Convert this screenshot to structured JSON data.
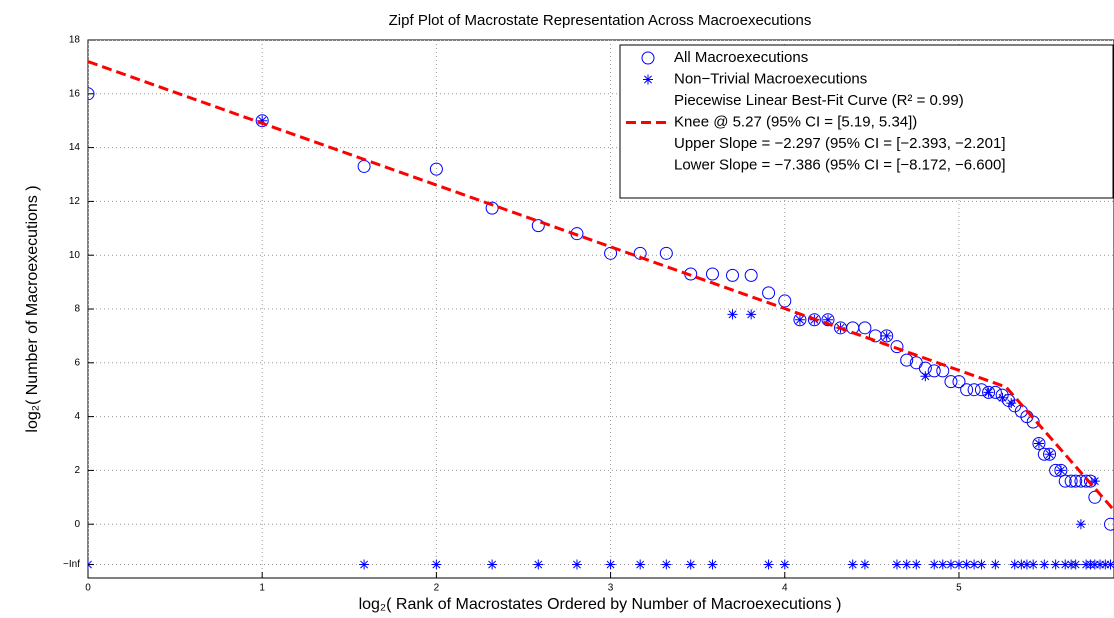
{
  "chart_data": {
    "type": "scatter",
    "title": "Zipf Plot of Macrostate Representation Across Macroexecutions",
    "xlabel": "log₂( Rank of Macrostates Ordered by Number of Macroexecutions )",
    "ylabel": "log₂( Number of Macroexecutions )",
    "xlim": [
      0,
      5.89
    ],
    "ylim": [
      -2,
      18
    ],
    "xticks": [
      0,
      1,
      2,
      3,
      4,
      5
    ],
    "yticks": [
      {
        "value": -1.5,
        "label": "−Inf"
      },
      0,
      2,
      4,
      6,
      8,
      10,
      12,
      14,
      16,
      18
    ],
    "grid": true,
    "legend": "upper right",
    "series": [
      {
        "name": "All Macroexecutions",
        "marker": "circle",
        "color": "#0000ff",
        "x": [
          0,
          1,
          1.585,
          2,
          2.32,
          2.585,
          2.807,
          3,
          3.17,
          3.32,
          3.46,
          3.585,
          3.7,
          3.807,
          3.907,
          4,
          4.087,
          4.17,
          4.248,
          4.32,
          4.39,
          4.46,
          4.52,
          4.585,
          4.644,
          4.7,
          4.755,
          4.807,
          4.858,
          4.907,
          4.954,
          5,
          5.044,
          5.087,
          5.129,
          5.17,
          5.209,
          5.248,
          5.285,
          5.32,
          5.358,
          5.39,
          5.426,
          5.459,
          5.49,
          5.52,
          5.555,
          5.585,
          5.61,
          5.644,
          5.67,
          5.7,
          5.73,
          5.755,
          5.78,
          5.87
        ],
        "values": [
          16,
          15,
          13.3,
          13.2,
          11.75,
          11.1,
          10.8,
          10.07,
          10.07,
          10.07,
          9.3,
          9.3,
          9.25,
          9.25,
          8.6,
          8.3,
          7.6,
          7.6,
          7.6,
          7.3,
          7.3,
          7.3,
          7.0,
          7.0,
          6.6,
          6.1,
          6.0,
          5.8,
          5.7,
          5.7,
          5.3,
          5.3,
          5.0,
          5.0,
          5.0,
          4.9,
          4.9,
          4.8,
          4.6,
          4.4,
          4.2,
          4.0,
          3.8,
          3.0,
          2.6,
          2.6,
          2.0,
          2.0,
          1.6,
          1.6,
          1.6,
          1.6,
          1.6,
          1.6,
          1.0,
          0
        ]
      },
      {
        "name": "Non−Trivial Macroexecutions",
        "marker": "star",
        "color": "#0000ff",
        "x": [
          1,
          3.7,
          3.807,
          4.087,
          4.17,
          4.248,
          4.32,
          4.585,
          4.807,
          5.17,
          5.25,
          5.3,
          5.459,
          5.52,
          5.585,
          5.7,
          5.78,
          0,
          1.585,
          2,
          2.32,
          2.585,
          2.807,
          3,
          3.17,
          3.32,
          3.46,
          3.585,
          3.907,
          4,
          4.39,
          4.46,
          4.644,
          4.7,
          4.755,
          4.858,
          4.907,
          4.954,
          5,
          5.044,
          5.087,
          5.129,
          5.209,
          5.32,
          5.358,
          5.39,
          5.426,
          5.49,
          5.555,
          5.61,
          5.644,
          5.67,
          5.73,
          5.755,
          5.78,
          5.81,
          5.84,
          5.87
        ],
        "values": [
          15,
          7.8,
          7.8,
          7.6,
          7.6,
          7.6,
          7.3,
          7.0,
          5.5,
          4.9,
          4.7,
          4.5,
          3.0,
          2.6,
          2.0,
          0,
          1.6,
          -1.5,
          -1.5,
          -1.5,
          -1.5,
          -1.5,
          -1.5,
          -1.5,
          -1.5,
          -1.5,
          -1.5,
          -1.5,
          -1.5,
          -1.5,
          -1.5,
          -1.5,
          -1.5,
          -1.5,
          -1.5,
          -1.5,
          -1.5,
          -1.5,
          -1.5,
          -1.5,
          -1.5,
          -1.5,
          -1.5,
          -1.5,
          -1.5,
          -1.5,
          -1.5,
          -1.5,
          -1.5,
          -1.5,
          -1.5,
          -1.5,
          -1.5,
          -1.5,
          -1.5,
          -1.5,
          -1.5,
          -1.5
        ]
      },
      {
        "name": "Knee @ 5.27 (95% CI = [5.19, 5.34])",
        "marker": "dashed-line",
        "color": "#ff0000",
        "x": [
          0,
          5.27,
          5.89
        ],
        "values": [
          17.2,
          5.1,
          0.52
        ]
      }
    ],
    "legend_notes": [
      "Piecewise Linear Best-Fit Curve (R² = 0.99)",
      "Upper Slope = −2.297 (95% CI = [−2.393, −2.201]",
      "Lower Slope = −7.386 (95% CI = [−8.172, −6.600]"
    ]
  }
}
